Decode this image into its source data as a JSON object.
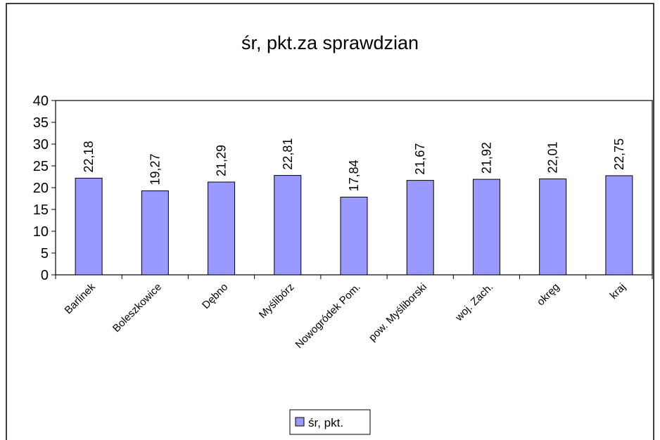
{
  "chart_data": {
    "type": "bar",
    "title": "śr, pkt.za sprawdzian",
    "categories": [
      "Barlinek",
      "Boleszkowice",
      "Dębno",
      "Myślibórz",
      "Nowogródek Pom.",
      "pow. Myśliborski",
      "woj. Zach.",
      "okręg",
      "kraj"
    ],
    "series": [
      {
        "name": "śr, pkt.",
        "color": "#9999ff",
        "values": [
          22.18,
          19.27,
          21.29,
          22.81,
          17.84,
          21.67,
          21.92,
          22.01,
          22.75
        ],
        "value_labels": [
          "22,18",
          "19,27",
          "21,29",
          "22,81",
          "17,84",
          "21,67",
          "21,92",
          "22,01",
          "22,75"
        ]
      }
    ],
    "ylim": [
      0,
      40
    ],
    "yticks": [
      0,
      5,
      10,
      15,
      20,
      25,
      30,
      35,
      40
    ],
    "grid": false,
    "legend": "bottom"
  }
}
